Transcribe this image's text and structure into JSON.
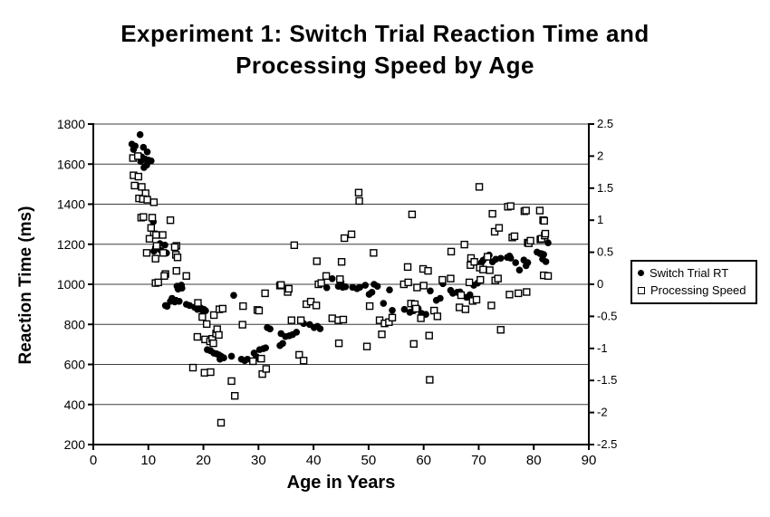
{
  "header": {
    "line1": "Experiment 1: Switch Trial Reaction Time and",
    "line2": "Processing Speed by Age"
  },
  "chart_data": {
    "type": "scatter",
    "title": "Experiment 1: Switch Trial Reaction Time and Processing Speed by Age",
    "xlabel": "Age in Years",
    "ylabel_left": "Reaction Time (ms)",
    "xlim": [
      0,
      90
    ],
    "ylim_left": [
      200,
      1800
    ],
    "ylim_right": [
      -2.5,
      2.5
    ],
    "xticks": [
      0,
      10,
      20,
      30,
      40,
      50,
      60,
      70,
      80,
      90
    ],
    "yticks_left": [
      200,
      400,
      600,
      800,
      1000,
      1200,
      1400,
      1600,
      1800
    ],
    "yticks_right": [
      -2.5,
      -2,
      -1.5,
      -1,
      -0.5,
      0,
      0.5,
      1,
      1.5,
      2,
      2.5
    ],
    "grid": "horizontal",
    "colors": {
      "foreground": "#000000",
      "background": "#ffffff",
      "gridline": "#3c3c3c"
    },
    "legend": {
      "position": "right",
      "entries": [
        {
          "label": "Switch Trial RT",
          "marker": "filled-circle"
        },
        {
          "label": "Processing Speed",
          "marker": "open-square"
        }
      ]
    },
    "series": [
      {
        "name": "Switch Trial RT",
        "axis": "left",
        "marker": "filled-circle",
        "points": [
          [
            7,
            1700
          ],
          [
            7.3,
            1673
          ],
          [
            7.6,
            1690
          ],
          [
            8.2,
            1640
          ],
          [
            8.5,
            1747
          ],
          [
            8.6,
            1613
          ],
          [
            8.8,
            1636
          ],
          [
            9.1,
            1684
          ],
          [
            9.2,
            1583
          ],
          [
            9.4,
            1625
          ],
          [
            9.7,
            1595
          ],
          [
            9.8,
            1661
          ],
          [
            10,
            1620
          ],
          [
            10.5,
            1616
          ],
          [
            10.9,
            1312
          ],
          [
            11,
            1165
          ],
          [
            11.3,
            1184
          ],
          [
            11.5,
            1179
          ],
          [
            12.1,
            1203
          ],
          [
            12.3,
            1168
          ],
          [
            13,
            1196
          ],
          [
            13.3,
            1156
          ],
          [
            13.1,
            894
          ],
          [
            13.4,
            890
          ],
          [
            14,
            915
          ],
          [
            14.3,
            930
          ],
          [
            14.8,
            912
          ],
          [
            15,
            920
          ],
          [
            15.2,
            991
          ],
          [
            15.4,
            976
          ],
          [
            15.6,
            915
          ],
          [
            16,
            996
          ],
          [
            16.1,
            981
          ],
          [
            16.9,
            900
          ],
          [
            17.5,
            894
          ],
          [
            18.4,
            885
          ],
          [
            18.9,
            875
          ],
          [
            19.5,
            882
          ],
          [
            19.8,
            870
          ],
          [
            20.1,
            875
          ],
          [
            20.4,
            868
          ],
          [
            20.7,
            674
          ],
          [
            21.3,
            668
          ],
          [
            21.9,
            656
          ],
          [
            22.4,
            653
          ],
          [
            22.8,
            648
          ],
          [
            23,
            626
          ],
          [
            23.2,
            641
          ],
          [
            23.7,
            633
          ],
          [
            25.1,
            641
          ],
          [
            25.5,
            945
          ],
          [
            26.9,
            626
          ],
          [
            27.5,
            619
          ],
          [
            28,
            626
          ],
          [
            29.2,
            657
          ],
          [
            29.6,
            639
          ],
          [
            30,
            630
          ],
          [
            30.2,
            674
          ],
          [
            30.9,
            679
          ],
          [
            31.3,
            683
          ],
          [
            31.6,
            784
          ],
          [
            32.1,
            777
          ],
          [
            33.9,
            694
          ],
          [
            34.1,
            754
          ],
          [
            34.4,
            705
          ],
          [
            34.9,
            739
          ],
          [
            35.6,
            743
          ],
          [
            36.2,
            749
          ],
          [
            36.9,
            761
          ],
          [
            38.2,
            804
          ],
          [
            39.3,
            799
          ],
          [
            40.1,
            784
          ],
          [
            40.7,
            790
          ],
          [
            41.2,
            778
          ],
          [
            42.4,
            983
          ],
          [
            43.4,
            1028
          ],
          [
            44.5,
            990
          ],
          [
            45,
            1010
          ],
          [
            45.3,
            985
          ],
          [
            45.8,
            988
          ],
          [
            47.1,
            985
          ],
          [
            47.9,
            978
          ],
          [
            48.4,
            985
          ],
          [
            49.4,
            995
          ],
          [
            50.1,
            950
          ],
          [
            50.6,
            960
          ],
          [
            51,
            1000
          ],
          [
            51.6,
            990
          ],
          [
            52.7,
            905
          ],
          [
            53.8,
            972
          ],
          [
            54.3,
            870
          ],
          [
            56.5,
            875
          ],
          [
            57.5,
            860
          ],
          [
            58.2,
            868
          ],
          [
            59,
            879
          ],
          [
            59.6,
            855
          ],
          [
            60.4,
            850
          ],
          [
            61.2,
            967
          ],
          [
            62.3,
            920
          ],
          [
            63,
            930
          ],
          [
            63.5,
            1003
          ],
          [
            64.9,
            970
          ],
          [
            65.3,
            955
          ],
          [
            66.1,
            960
          ],
          [
            66.6,
            962
          ],
          [
            67.8,
            935
          ],
          [
            68.4,
            948
          ],
          [
            69.1,
            995
          ],
          [
            69.8,
            1006
          ],
          [
            70.5,
            1108
          ],
          [
            70.8,
            1120
          ],
          [
            71.4,
            1134
          ],
          [
            71.9,
            1146
          ],
          [
            72.5,
            1112
          ],
          [
            73.1,
            1125
          ],
          [
            74,
            1130
          ],
          [
            75.2,
            1134
          ],
          [
            75.6,
            1141
          ],
          [
            75.8,
            1131
          ],
          [
            76.7,
            1108
          ],
          [
            77.4,
            1071
          ],
          [
            78.2,
            1121
          ],
          [
            78.6,
            1093
          ],
          [
            78.9,
            1108
          ],
          [
            80.6,
            1161
          ],
          [
            81.1,
            1154
          ],
          [
            81.4,
            1153
          ],
          [
            81.6,
            1126
          ],
          [
            81.8,
            1149
          ],
          [
            82.2,
            1113
          ],
          [
            82.6,
            1207
          ]
        ]
      },
      {
        "name": "Processing Speed",
        "axis": "right",
        "marker": "open-square",
        "points": [
          [
            7.2,
            1.97
          ],
          [
            8.1,
            2.0
          ],
          [
            7.3,
            1.7
          ],
          [
            8.2,
            1.68
          ],
          [
            7.5,
            1.54
          ],
          [
            8.8,
            1.52
          ],
          [
            9.5,
            1.42
          ],
          [
            8.3,
            1.34
          ],
          [
            9,
            1.33
          ],
          [
            9.8,
            1.32
          ],
          [
            11,
            1.28
          ],
          [
            8.7,
            1.04
          ],
          [
            9.1,
            1.05
          ],
          [
            10.7,
            1.04
          ],
          [
            14,
            1.0
          ],
          [
            10.5,
            0.88
          ],
          [
            11,
            0.78
          ],
          [
            11.4,
            0.77
          ],
          [
            12.6,
            0.77
          ],
          [
            10.2,
            0.71
          ],
          [
            11.5,
            0.6
          ],
          [
            15.1,
            0.6
          ],
          [
            14.8,
            0.58
          ],
          [
            9.7,
            0.49
          ],
          [
            12.7,
            0.49
          ],
          [
            15,
            0.46
          ],
          [
            11.3,
            0.4
          ],
          [
            15.3,
            0.42
          ],
          [
            13.1,
            0.16
          ],
          [
            15.1,
            0.21
          ],
          [
            16.9,
            0.13
          ],
          [
            11.3,
            0.02
          ],
          [
            11.8,
            0.03
          ],
          [
            12.9,
            0.13
          ],
          [
            18.1,
            -1.3
          ],
          [
            18.9,
            -0.82
          ],
          [
            19,
            -0.29
          ],
          [
            19.8,
            -0.51
          ],
          [
            20.2,
            -1.38
          ],
          [
            20.3,
            -0.86
          ],
          [
            20.6,
            -0.62
          ],
          [
            21.2,
            -0.89
          ],
          [
            21.3,
            -1.37
          ],
          [
            21.6,
            -0.85
          ],
          [
            21.8,
            -0.92
          ],
          [
            21.9,
            -0.48
          ],
          [
            22.3,
            -0.77
          ],
          [
            22.5,
            -0.7
          ],
          [
            22.8,
            -0.79
          ],
          [
            22.9,
            -0.39
          ],
          [
            23.2,
            -2.16
          ],
          [
            23.5,
            -0.38
          ],
          [
            25.1,
            -1.51
          ],
          [
            25.7,
            -1.74
          ],
          [
            27.1,
            -0.63
          ],
          [
            27.2,
            -0.34
          ],
          [
            29,
            -1.2
          ],
          [
            29.8,
            -0.4
          ],
          [
            30.1,
            -0.41
          ],
          [
            30.5,
            -1.16
          ],
          [
            30.7,
            -1.4
          ],
          [
            31.2,
            -0.14
          ],
          [
            31.4,
            -1.32
          ],
          [
            33.9,
            -0.02
          ],
          [
            34.1,
            -0.01
          ],
          [
            35.3,
            -0.12
          ],
          [
            35.5,
            -0.07
          ],
          [
            36,
            -0.56
          ],
          [
            36.5,
            0.61
          ],
          [
            37.4,
            -1.1
          ],
          [
            37.7,
            -0.56
          ],
          [
            38.2,
            -1.19
          ],
          [
            38.7,
            -0.31
          ],
          [
            39.5,
            -0.27
          ],
          [
            40.5,
            -0.33
          ],
          [
            40.6,
            0.36
          ],
          [
            40.9,
            0.0
          ],
          [
            41.4,
            0.02
          ],
          [
            42.3,
            0.13
          ],
          [
            43.4,
            -0.53
          ],
          [
            44.5,
            -0.56
          ],
          [
            44.6,
            -0.92
          ],
          [
            44.8,
            0.08
          ],
          [
            45.1,
            0.35
          ],
          [
            45.4,
            -0.55
          ],
          [
            45.6,
            0.72
          ],
          [
            46.9,
            0.78
          ],
          [
            48.2,
            1.43
          ],
          [
            48.3,
            1.3
          ],
          [
            49.7,
            -0.97
          ],
          [
            50.2,
            -0.34
          ],
          [
            50.9,
            0.49
          ],
          [
            52,
            -0.56
          ],
          [
            52.4,
            -0.78
          ],
          [
            52.9,
            -0.61
          ],
          [
            53.7,
            -0.59
          ],
          [
            54.3,
            -0.52
          ],
          [
            56.4,
            0.0
          ],
          [
            57.1,
            0.27
          ],
          [
            57.2,
            0.03
          ],
          [
            57.7,
            -0.3
          ],
          [
            57.9,
            1.09
          ],
          [
            58.2,
            -0.93
          ],
          [
            58.4,
            -0.31
          ],
          [
            58.6,
            -0.38
          ],
          [
            58.8,
            -0.05
          ],
          [
            59.5,
            -0.53
          ],
          [
            59.9,
            0.24
          ],
          [
            60,
            -0.02
          ],
          [
            60.8,
            0.21
          ],
          [
            61,
            -0.8
          ],
          [
            61.1,
            -1.49
          ],
          [
            61.9,
            -0.41
          ],
          [
            62.5,
            -0.5
          ],
          [
            63.4,
            0.07
          ],
          [
            64.9,
            0.09
          ],
          [
            65,
            0.51
          ],
          [
            66.5,
            -0.36
          ],
          [
            66.8,
            -0.17
          ],
          [
            67.4,
            0.62
          ],
          [
            67.6,
            -0.39
          ],
          [
            68.3,
            0.03
          ],
          [
            68.5,
            0.3
          ],
          [
            68.6,
            0.41
          ],
          [
            68.9,
            -0.26
          ],
          [
            69.2,
            0.35
          ],
          [
            69.6,
            -0.24
          ],
          [
            70.1,
            1.52
          ],
          [
            70.2,
            0.26
          ],
          [
            70.3,
            0.07
          ],
          [
            70.8,
            0.23
          ],
          [
            71.6,
            0.43
          ],
          [
            72,
            0.22
          ],
          [
            72.3,
            -0.33
          ],
          [
            72.5,
            1.1
          ],
          [
            72.9,
            0.82
          ],
          [
            73,
            0.06
          ],
          [
            73.5,
            0.09
          ],
          [
            73.7,
            0.88
          ],
          [
            74,
            -0.71
          ],
          [
            75.3,
            1.21
          ],
          [
            75.6,
            -0.16
          ],
          [
            75.8,
            1.22
          ],
          [
            76.1,
            0.73
          ],
          [
            76.5,
            0.75
          ],
          [
            77.2,
            -0.14
          ],
          [
            78.3,
            1.14
          ],
          [
            78.6,
            1.15
          ],
          [
            78.7,
            -0.12
          ],
          [
            78.9,
            0.65
          ],
          [
            79.1,
            0.64
          ],
          [
            79.4,
            0.68
          ],
          [
            81.1,
            1.15
          ],
          [
            81.2,
            0.7
          ],
          [
            81.4,
            0.71
          ],
          [
            81.7,
            1.0
          ],
          [
            81.8,
            0.14
          ],
          [
            81.9,
            0.99
          ],
          [
            82,
            0.76
          ],
          [
            82.1,
            0.79
          ],
          [
            82.6,
            0.13
          ]
        ]
      }
    ]
  }
}
